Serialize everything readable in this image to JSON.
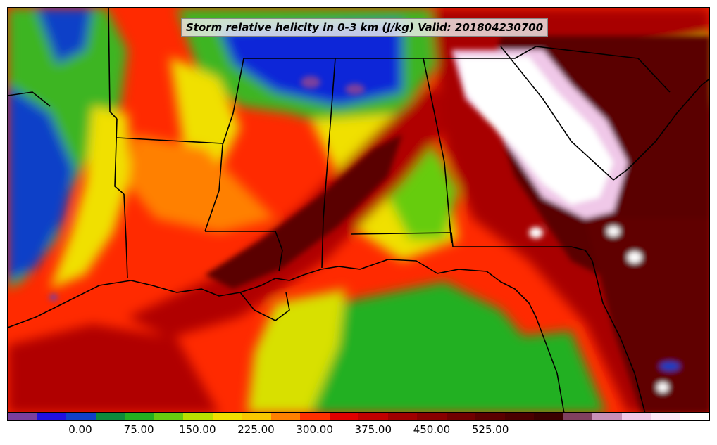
{
  "title": "Storm relative helicity in 0-3 km (J/kg) Valid: 201804230700",
  "colorbar": {
    "colors": [
      "#7a3f9e",
      "#2010e0",
      "#1040c8",
      "#0d8a3c",
      "#22b020",
      "#66cc10",
      "#b8e000",
      "#f0e000",
      "#f8c800",
      "#ff8000",
      "#ff3000",
      "#e00000",
      "#c00000",
      "#a00000",
      "#880000",
      "#700000",
      "#5a0000",
      "#4a0000",
      "#3a0000",
      "#804060",
      "#c890b8",
      "#f0c8e8",
      "#fce8f8",
      "#ffffff"
    ],
    "tick_labels": [
      "0.00",
      "75.00",
      "150.00",
      "225.00",
      "300.00",
      "375.00",
      "450.00",
      "525.00"
    ],
    "tick_index": [
      2,
      4,
      6,
      8,
      10,
      12,
      14,
      16
    ],
    "range": [
      -50,
      550
    ],
    "unit": "J/kg"
  },
  "map": {
    "field": "storm-relative-helicity-0-3km",
    "palette": {
      "blue": "#1030d0",
      "green_dark": "#0d8a3c",
      "green": "#22b020",
      "yellow_green": "#b8e000",
      "yellow": "#f0e000",
      "orange": "#ff8000",
      "red": "#ff2000",
      "dark_red": "#b80000",
      "maroon": "#6a0000",
      "pink": "#f0c8e8",
      "white": "#ffffff",
      "purple": "#7a3f9e",
      "boundary": "#000000"
    }
  }
}
